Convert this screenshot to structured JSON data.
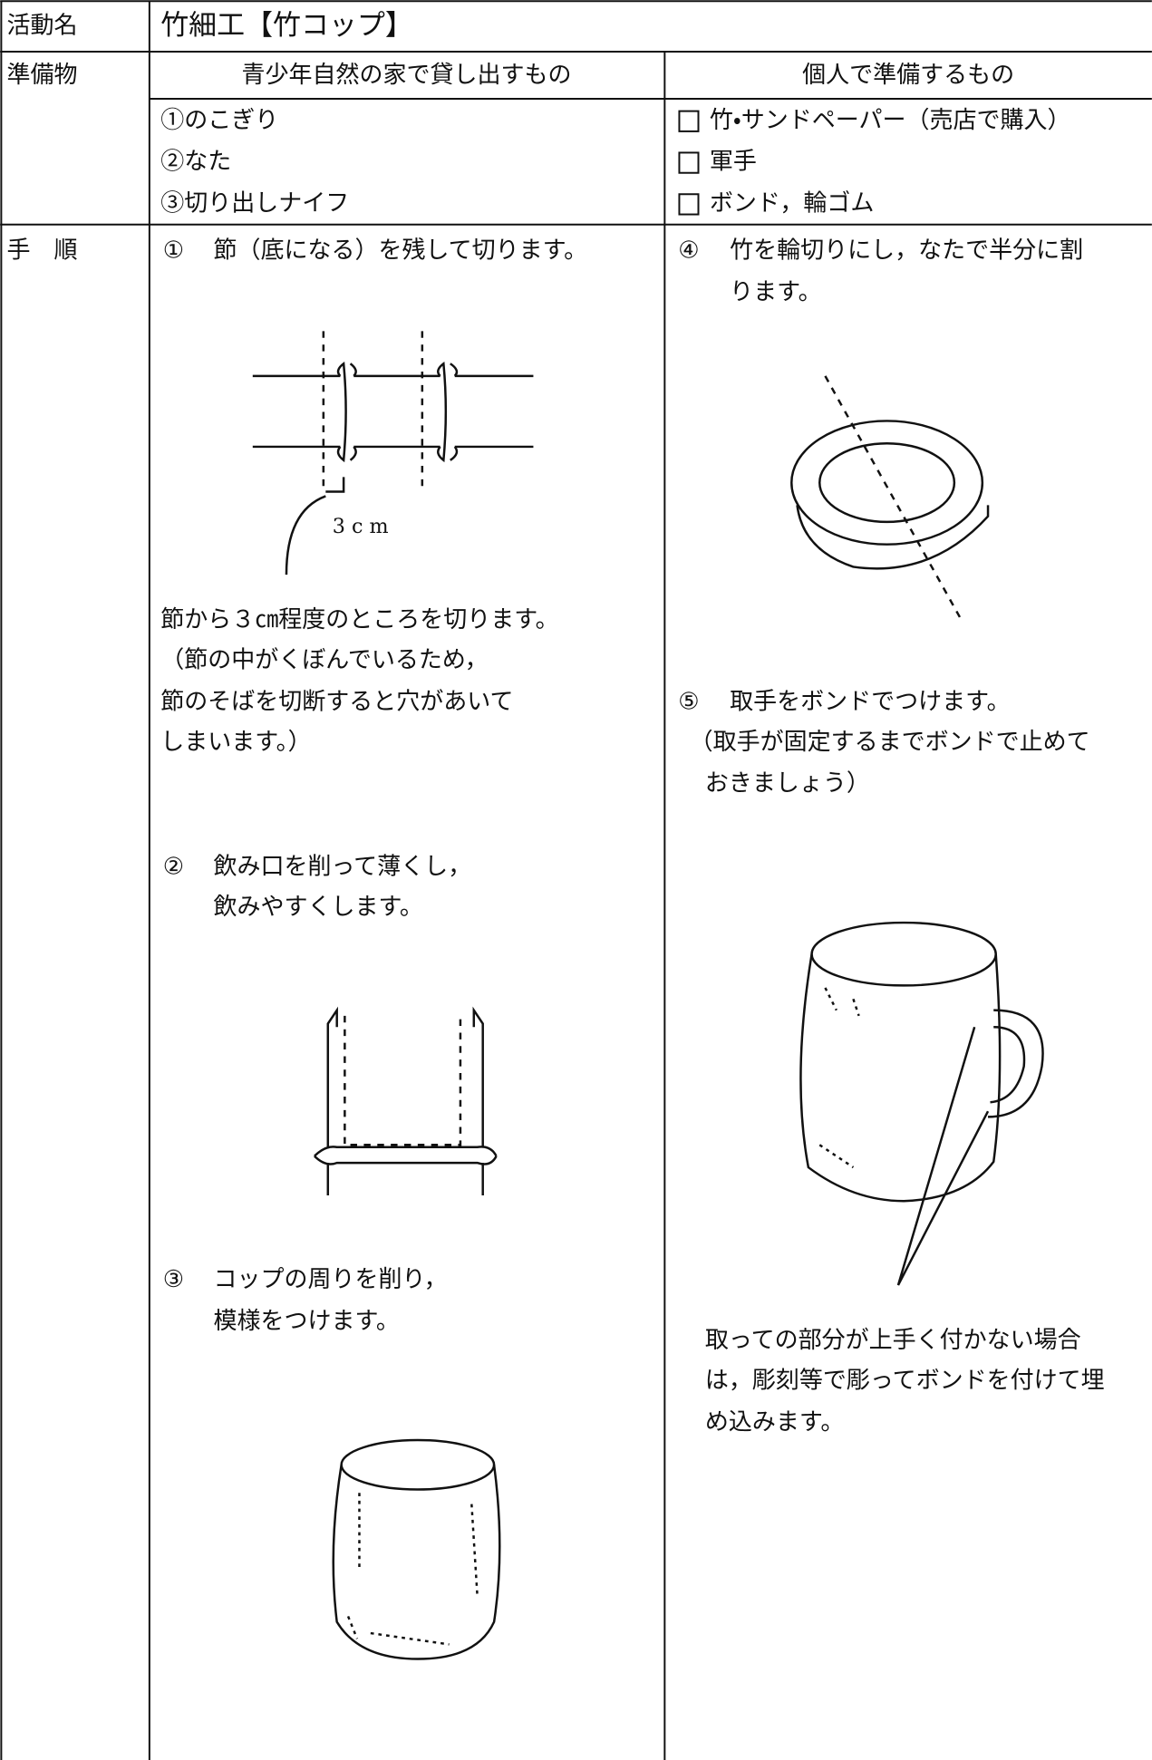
{
  "header": {
    "label": "活動名",
    "title": "竹細工【竹コップ】"
  },
  "preparation": {
    "label": "準備物",
    "lent_heading": "青少年自然の家で貸し出すもの",
    "personal_heading": "個人で準備するもの",
    "lent_items": [
      "①のこぎり",
      "②なた",
      "③切り出しナイフ"
    ],
    "personal_items": [
      "竹・サンドペーパー（売店で購入）",
      "軍手",
      "ボンド，輪ゴム"
    ]
  },
  "procedure": {
    "label": "手　順",
    "steps": [
      {
        "marker": "①",
        "lines": [
          "節（底になる）を残して切ります。"
        ],
        "diagram_label": "3 c m",
        "note": [
          "節から３㎝程度のところを切ります。",
          "（節の中がくぼんでいるため，",
          "節のそばを切断すると穴があいて",
          "しまいます。）"
        ]
      },
      {
        "marker": "②",
        "lines": [
          "飲み口を削って薄くし，",
          "飲みやすくします。"
        ]
      },
      {
        "marker": "③",
        "lines": [
          "コップの周りを削り，",
          "模様をつけます。"
        ]
      },
      {
        "marker": "④",
        "lines": [
          "竹を輪切りにし，なたで半分に割",
          "ります。"
        ]
      },
      {
        "marker": "⑤",
        "lines": [
          "取手をボンドでつけます。"
        ],
        "note": [
          "（取手が固定するまでボンドで止めて",
          "おきましょう）"
        ],
        "note2": [
          "取っての部分が上手く付かない場合",
          "は，彫刻等で彫ってボンドを付けて埋",
          "め込みます。"
        ]
      }
    ]
  }
}
